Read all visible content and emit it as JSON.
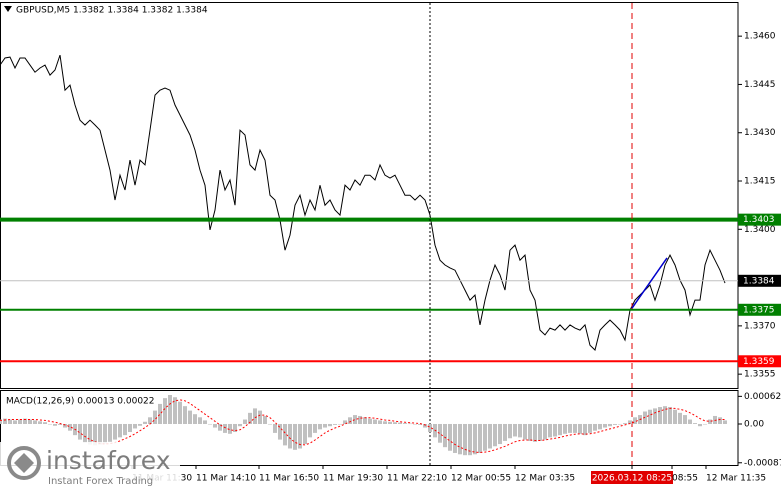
{
  "chart_data": [
    {
      "type": "line",
      "title": "GBPUSD,M5 1.3382 1.3384 1.3382 1.3384",
      "xlim": [
        0,
        147.6
      ],
      "ylim": [
        1.33507,
        1.34703
      ],
      "yticks": [
        {
          "value": 1.346,
          "label": "1.3460"
        },
        {
          "value": 1.3445,
          "label": "1.3445"
        },
        {
          "value": 1.343,
          "label": "1.3430"
        },
        {
          "value": 1.3415,
          "label": "1.3415"
        },
        {
          "value": 1.34,
          "label": "1.3400"
        },
        {
          "value": 1.337,
          "label": "1.3370"
        },
        {
          "value": 1.3355,
          "label": "1.3355"
        }
      ],
      "series": [
        {
          "color": "#000000",
          "values": [
            1.3451,
            1.34532,
            1.34535,
            1.34501,
            1.34532,
            1.34532,
            1.3451,
            1.34488,
            1.34501,
            1.3451,
            1.34479,
            1.34495,
            1.34541,
            1.34432,
            1.34448,
            1.34386,
            1.34339,
            1.34324,
            1.34339,
            1.34324,
            1.34308,
            1.34246,
            1.34184,
            1.34091,
            1.34168,
            1.34122,
            1.34215,
            1.34137,
            1.34215,
            1.342,
            1.34308,
            1.34417,
            1.34432,
            1.34439,
            1.34432,
            1.34386,
            1.34355,
            1.34324,
            1.34293,
            1.34246,
            1.34184,
            1.34137,
            1.33998,
            1.3406,
            1.34184,
            1.34122,
            1.34153,
            1.34075,
            1.34308,
            1.34293,
            1.342,
            1.34184,
            1.34246,
            1.34215,
            1.34106,
            1.34091,
            1.34029,
            1.33935,
            1.33982,
            1.34075,
            1.34106,
            1.34044,
            1.34091,
            1.3406,
            1.34137,
            1.34075,
            1.34091,
            1.3406,
            1.34044,
            1.34137,
            1.34122,
            1.34153,
            1.34137,
            1.34168,
            1.34168,
            1.34153,
            1.342,
            1.34168,
            1.34159,
            1.34168,
            1.34137,
            1.34106,
            1.34106,
            1.34091,
            1.34106,
            1.34091,
            1.34044,
            1.33951,
            1.33904,
            1.33889,
            1.3388,
            1.33873,
            1.33842,
            1.33811,
            1.3378,
            1.33796,
            1.33703,
            1.3378,
            1.33842,
            1.33889,
            1.33858,
            1.33811,
            1.33935,
            1.33951,
            1.33904,
            1.3392,
            1.33811,
            1.3378,
            1.33687,
            1.33672,
            1.33693,
            1.33687,
            1.33703,
            1.33687,
            1.33703,
            1.33693,
            1.33687,
            1.33703,
            1.3364,
            1.33625,
            1.33687,
            1.33703,
            1.33718,
            1.33703,
            1.33687,
            1.33656,
            1.33749,
            1.3378,
            1.33796,
            1.33811,
            1.33827,
            1.3378,
            1.33827,
            1.33889,
            1.3392,
            1.33889,
            1.33842,
            1.33811,
            1.33734,
            1.3378,
            1.3378,
            1.33889,
            1.33935,
            1.33904,
            1.33873,
            1.33833
          ]
        }
      ],
      "levels": [
        {
          "value": 1.3403,
          "color": "#008000",
          "line": "thick"
        },
        {
          "value": 1.3375,
          "color": "#008000",
          "line": "thin"
        },
        {
          "value": 1.3359,
          "color": "#ff0000",
          "line": "thin"
        },
        {
          "value": 1.3384,
          "color": "#c0c0c0",
          "label_color": "#000000",
          "line": "hairline"
        }
      ],
      "vlines": [
        {
          "x": 86,
          "color": "#000000"
        },
        {
          "x": 126.4,
          "color": "#e00000"
        }
      ],
      "trendline": {
        "x": [
          126.4,
          133.4
        ],
        "y": [
          1.33755,
          1.33911
        ],
        "color": "#0000cc"
      },
      "watermark": {
        "brand": "instaforex",
        "tagline": "Instant Forex Trading"
      }
    },
    {
      "type": "macd",
      "title": "MACD(12,26,9) 0.00013 0.00022",
      "xlim": [
        0,
        147.6
      ],
      "ylim": [
        -0.00092,
        0.00074
      ],
      "yticks": [
        0.00062,
        {
          "value": 0,
          "label": "0.00"
        },
        -0.00087
      ],
      "xticks": [
        {
          "value": 26.4,
          "label": "11 Mar 11:30"
        },
        {
          "value": 39.2,
          "label": "11 Mar 14:10"
        },
        {
          "value": 51.8,
          "label": "11 Mar 16:50"
        },
        {
          "value": 64.6,
          "label": "11 Mar 19:30"
        },
        {
          "value": 77.4,
          "label": "11 Mar 22:10"
        },
        {
          "value": 90.2,
          "label": "12 Mar 00:55"
        },
        {
          "value": 103,
          "label": "12 Mar 03:35"
        },
        {
          "value": 126.4,
          "label": "2026.03.12 08:25",
          "highlight": "#e00000"
        },
        {
          "value": 134.4,
          "label": "08:55"
        },
        {
          "value": 141.2,
          "label": "12 Mar 11:35"
        }
      ],
      "series": [
        {
          "type": "bar",
          "color": "#c0c0c0",
          "values": [
            0.0001,
            0.00012,
            0.0001,
            8e-05,
            0.0001,
            0.00012,
            0.0001,
            8e-05,
            6e-05,
            4e-05,
            0,
            -4e-05,
            -2e-05,
            -8e-05,
            -0.00015,
            -0.00025,
            -0.00035,
            -0.00042,
            -0.00046,
            -0.00048,
            -0.00046,
            -0.00044,
            -0.0004,
            -0.00035,
            -0.0003,
            -0.00025,
            -0.00018,
            -0.0001,
            -4e-05,
            5e-05,
            0.00015,
            0.0003,
            0.00045,
            0.00058,
            0.00065,
            0.0006,
            0.0005,
            0.0004,
            0.0003,
            0.00022,
            0.00015,
            8e-05,
            0,
            -8e-05,
            -0.00015,
            -0.0002,
            -0.00022,
            -0.00018,
            -5e-05,
            0.0001,
            0.00025,
            0.00035,
            0.0003,
            0.00018,
            0,
            -0.0002,
            -0.00035,
            -0.00048,
            -0.00055,
            -0.00058,
            -0.00055,
            -0.00045,
            -0.0003,
            -0.0002,
            -0.00012,
            -8e-05,
            -5e-05,
            -2e-05,
            0,
            8e-05,
            0.00015,
            0.0002,
            0.00018,
            0.00015,
            0.00012,
            0.0001,
            8e-05,
            6e-05,
            5e-05,
            4e-05,
            3e-05,
            2e-05,
            1e-05,
            0,
            -2e-05,
            -8e-05,
            -0.00018,
            -0.0003,
            -0.00042,
            -0.00052,
            -0.0006,
            -0.00065,
            -0.00068,
            -0.0007,
            -0.0007,
            -0.00068,
            -0.00065,
            -0.0006,
            -0.00055,
            -0.0005,
            -0.00045,
            -0.00038,
            -0.00032,
            -0.00028,
            -0.0003,
            -0.00035,
            -0.00038,
            -0.0004,
            -0.00038,
            -0.00035,
            -0.0003,
            -0.00028,
            -0.00025,
            -0.00022,
            -0.0002,
            -0.0002,
            -0.00022,
            -0.00025,
            -0.0002,
            -0.00015,
            -0.00012,
            -8e-05,
            -5e-05,
            -2e-05,
            0,
            2e-05,
            8e-05,
            0.00015,
            0.0002,
            0.00028,
            0.00032,
            0.00035,
            0.00038,
            0.0004,
            0.00038,
            0.00032,
            0.00025,
            0.0002,
            0.0001,
            2e-05,
            -5e-05,
            0,
            0.0001,
            0.00018,
            0.00015,
            8e-05
          ]
        },
        {
          "type": "line",
          "color": "#ff0000",
          "values": [
            8e-05,
            9e-05,
            0.0001,
            0.0001,
            0.0001,
            0.0001,
            0.0001,
            0.0001,
            9e-05,
            8e-05,
            6e-05,
            4e-05,
            1e-05,
            -2e-05,
            -6e-05,
            -0.00012,
            -0.0002,
            -0.00028,
            -0.00035,
            -0.0004,
            -0.00044,
            -0.00045,
            -0.00044,
            -0.00042,
            -0.00038,
            -0.00033,
            -0.00028,
            -0.00022,
            -0.00015,
            -8e-05,
            0,
            0.0001,
            0.00022,
            0.00035,
            0.00045,
            0.00052,
            0.00054,
            0.00052,
            0.00046,
            0.00038,
            0.0003,
            0.00022,
            0.00014,
            6e-05,
            -2e-05,
            -8e-05,
            -0.00013,
            -0.00015,
            -0.00013,
            -6e-05,
            4e-05,
            0.00014,
            0.0002,
            0.0002,
            0.00014,
            4e-05,
            -8e-05,
            -0.0002,
            -0.00032,
            -0.00041,
            -0.00046,
            -0.00047,
            -0.00043,
            -0.00036,
            -0.00028,
            -0.0002,
            -0.00014,
            -9e-05,
            -5e-05,
            0,
            5e-05,
            0.0001,
            0.00013,
            0.00014,
            0.00014,
            0.00013,
            0.00011,
            9e-05,
            8e-05,
            6e-05,
            5e-05,
            4e-05,
            3e-05,
            2e-05,
            1e-05,
            -2e-05,
            -7e-05,
            -0.00014,
            -0.00022,
            -0.0003,
            -0.00038,
            -0.00046,
            -0.00052,
            -0.00057,
            -0.00061,
            -0.00063,
            -0.00064,
            -0.00063,
            -0.00061,
            -0.00058,
            -0.00054,
            -0.0005,
            -0.00045,
            -0.0004,
            -0.00037,
            -0.00036,
            -0.00036,
            -0.00037,
            -0.00037,
            -0.00036,
            -0.00034,
            -0.00032,
            -0.0003,
            -0.00027,
            -0.00025,
            -0.00023,
            -0.00022,
            -0.00023,
            -0.00022,
            -0.0002,
            -0.00017,
            -0.00014,
            -0.00011,
            -8e-05,
            -5e-05,
            -2e-05,
            1e-05,
            5e-05,
            0.0001,
            0.00015,
            0.0002,
            0.00025,
            0.00029,
            0.00033,
            0.00035,
            0.00035,
            0.00033,
            0.0003,
            0.00025,
            0.00019,
            0.00012,
            7e-05,
            6e-05,
            8e-05,
            0.0001,
            0.0001
          ]
        }
      ]
    }
  ]
}
